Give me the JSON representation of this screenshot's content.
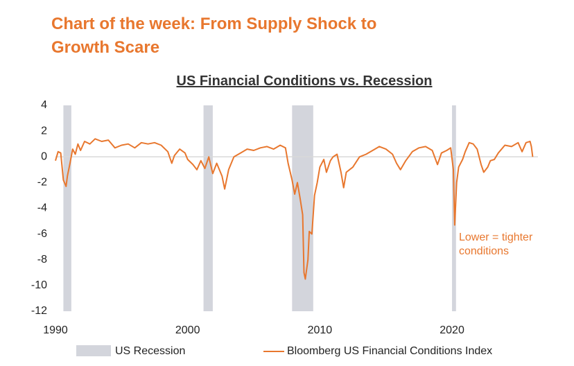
{
  "header": {
    "title": "Chart of the week: From Supply Shock to Growth Scare"
  },
  "chart_data": {
    "type": "line",
    "title": "US Financial Conditions vs. Recession",
    "annotation": "Lower = tighter conditions",
    "xlim": [
      1990,
      2026.5
    ],
    "xticks": [
      1990,
      2000,
      2010,
      2020
    ],
    "ylim": [
      -12,
      4
    ],
    "yticks": [
      4,
      2,
      0,
      -2,
      -4,
      -6,
      -8,
      -10,
      -12
    ],
    "recession": {
      "name": "US Recession",
      "color": "#d3d5dc",
      "periods": [
        [
          1990.6,
          1991.2
        ],
        [
          2001.2,
          2001.9
        ],
        [
          2007.9,
          2009.5
        ],
        [
          2020.0,
          2020.3
        ]
      ]
    },
    "series": [
      {
        "name": "Bloomberg US Financial Conditions Index",
        "color": "#e8772e",
        "x": [
          1990.0,
          1990.2,
          1990.4,
          1990.6,
          1990.8,
          1990.9,
          1991.1,
          1991.3,
          1991.5,
          1991.7,
          1991.9,
          1992.2,
          1992.6,
          1993.0,
          1993.5,
          1994.0,
          1994.5,
          1995.0,
          1995.5,
          1996.0,
          1996.5,
          1997.0,
          1997.5,
          1998.0,
          1998.5,
          1998.8,
          1999.0,
          1999.4,
          1999.8,
          2000.0,
          2000.4,
          2000.7,
          2001.0,
          2001.3,
          2001.6,
          2001.9,
          2002.2,
          2002.6,
          2002.8,
          2003.1,
          2003.5,
          2004.0,
          2004.5,
          2005.0,
          2005.5,
          2006.0,
          2006.5,
          2007.0,
          2007.4,
          2007.6,
          2007.9,
          2008.1,
          2008.3,
          2008.5,
          2008.7,
          2008.8,
          2008.9,
          2009.1,
          2009.2,
          2009.4,
          2009.6,
          2009.8,
          2010.0,
          2010.3,
          2010.5,
          2010.8,
          2011.0,
          2011.3,
          2011.6,
          2011.8,
          2012.0,
          2012.5,
          2013.0,
          2013.5,
          2014.0,
          2014.5,
          2015.0,
          2015.5,
          2015.8,
          2016.1,
          2016.5,
          2017.0,
          2017.5,
          2018.0,
          2018.5,
          2018.9,
          2019.2,
          2019.6,
          2019.9,
          2020.1,
          2020.2,
          2020.35,
          2020.5,
          2020.8,
          2021.0,
          2021.3,
          2021.6,
          2021.9,
          2022.2,
          2022.4,
          2022.7,
          2022.9,
          2023.2,
          2023.5,
          2024.0,
          2024.5,
          2025.0,
          2025.3,
          2025.6,
          2025.9,
          2026.0,
          2026.1
        ],
        "values": [
          -0.3,
          0.4,
          0.3,
          -1.8,
          -2.3,
          -1.5,
          -0.5,
          0.6,
          0.2,
          1.0,
          0.5,
          1.2,
          1.0,
          1.4,
          1.2,
          1.3,
          0.7,
          0.9,
          1.0,
          0.7,
          1.1,
          1.0,
          1.1,
          0.9,
          0.4,
          -0.5,
          0.1,
          0.6,
          0.3,
          -0.2,
          -0.6,
          -1.0,
          -0.3,
          -0.9,
          0.0,
          -1.3,
          -0.5,
          -1.5,
          -2.5,
          -1.0,
          0.0,
          0.3,
          0.6,
          0.5,
          0.7,
          0.8,
          0.6,
          0.9,
          0.7,
          -0.5,
          -1.8,
          -2.9,
          -2.0,
          -3.2,
          -4.5,
          -9.0,
          -9.5,
          -8.0,
          -5.8,
          -6.0,
          -3.0,
          -2.0,
          -0.8,
          -0.2,
          -1.2,
          -0.3,
          0.0,
          0.2,
          -1.2,
          -2.4,
          -1.2,
          -0.8,
          0.0,
          0.2,
          0.5,
          0.8,
          0.6,
          0.2,
          -0.5,
          -1.0,
          -0.3,
          0.4,
          0.7,
          0.8,
          0.5,
          -0.6,
          0.3,
          0.5,
          0.7,
          -1.0,
          -5.3,
          -2.0,
          -0.8,
          -0.2,
          0.4,
          1.1,
          1.0,
          0.6,
          -0.6,
          -1.2,
          -0.8,
          -0.3,
          -0.2,
          0.3,
          0.9,
          0.8,
          1.1,
          0.4,
          1.1,
          1.2,
          0.8,
          0.0
        ]
      }
    ]
  }
}
